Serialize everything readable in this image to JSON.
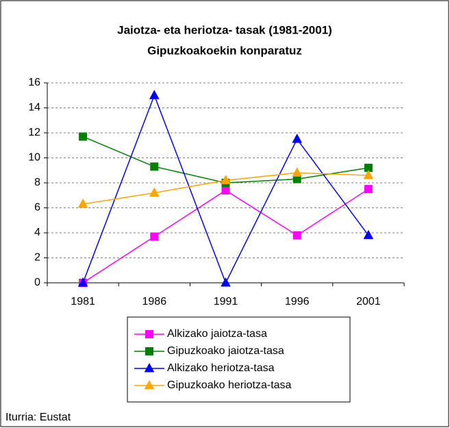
{
  "chart_data": {
    "type": "line",
    "title": "Jaiotza- eta heriotza- tasak (1981-2001)",
    "subtitle": "Gipuzkoakoekin konparatuz",
    "categories": [
      "1981",
      "1986",
      "1991",
      "1996",
      "2001"
    ],
    "series": [
      {
        "name": "Alkizako jaiotza-tasa",
        "color": "#ff00ff",
        "marker": "square",
        "values": [
          0,
          3.7,
          7.4,
          3.8,
          7.5
        ]
      },
      {
        "name": "Gipuzkoako jaiotza-tasa",
        "color": "#008000",
        "marker": "square",
        "values": [
          11.7,
          9.3,
          8.0,
          8.3,
          9.2
        ]
      },
      {
        "name": "Alkizako heriotza-tasa",
        "color": "#0000ff",
        "marker": "triangle",
        "values": [
          0,
          15,
          0,
          11.5,
          3.8
        ]
      },
      {
        "name": "Gipuzkoako heriotza-tasa",
        "color": "#ffa500",
        "marker": "triangle",
        "values": [
          6.3,
          7.2,
          8.2,
          8.8,
          8.6
        ]
      }
    ],
    "ylim": [
      0,
      16
    ],
    "yticks": [
      0,
      2,
      4,
      6,
      8,
      10,
      12,
      14,
      16
    ],
    "grid": true,
    "legend": "bottom",
    "source": "Iturria: Eustat"
  }
}
